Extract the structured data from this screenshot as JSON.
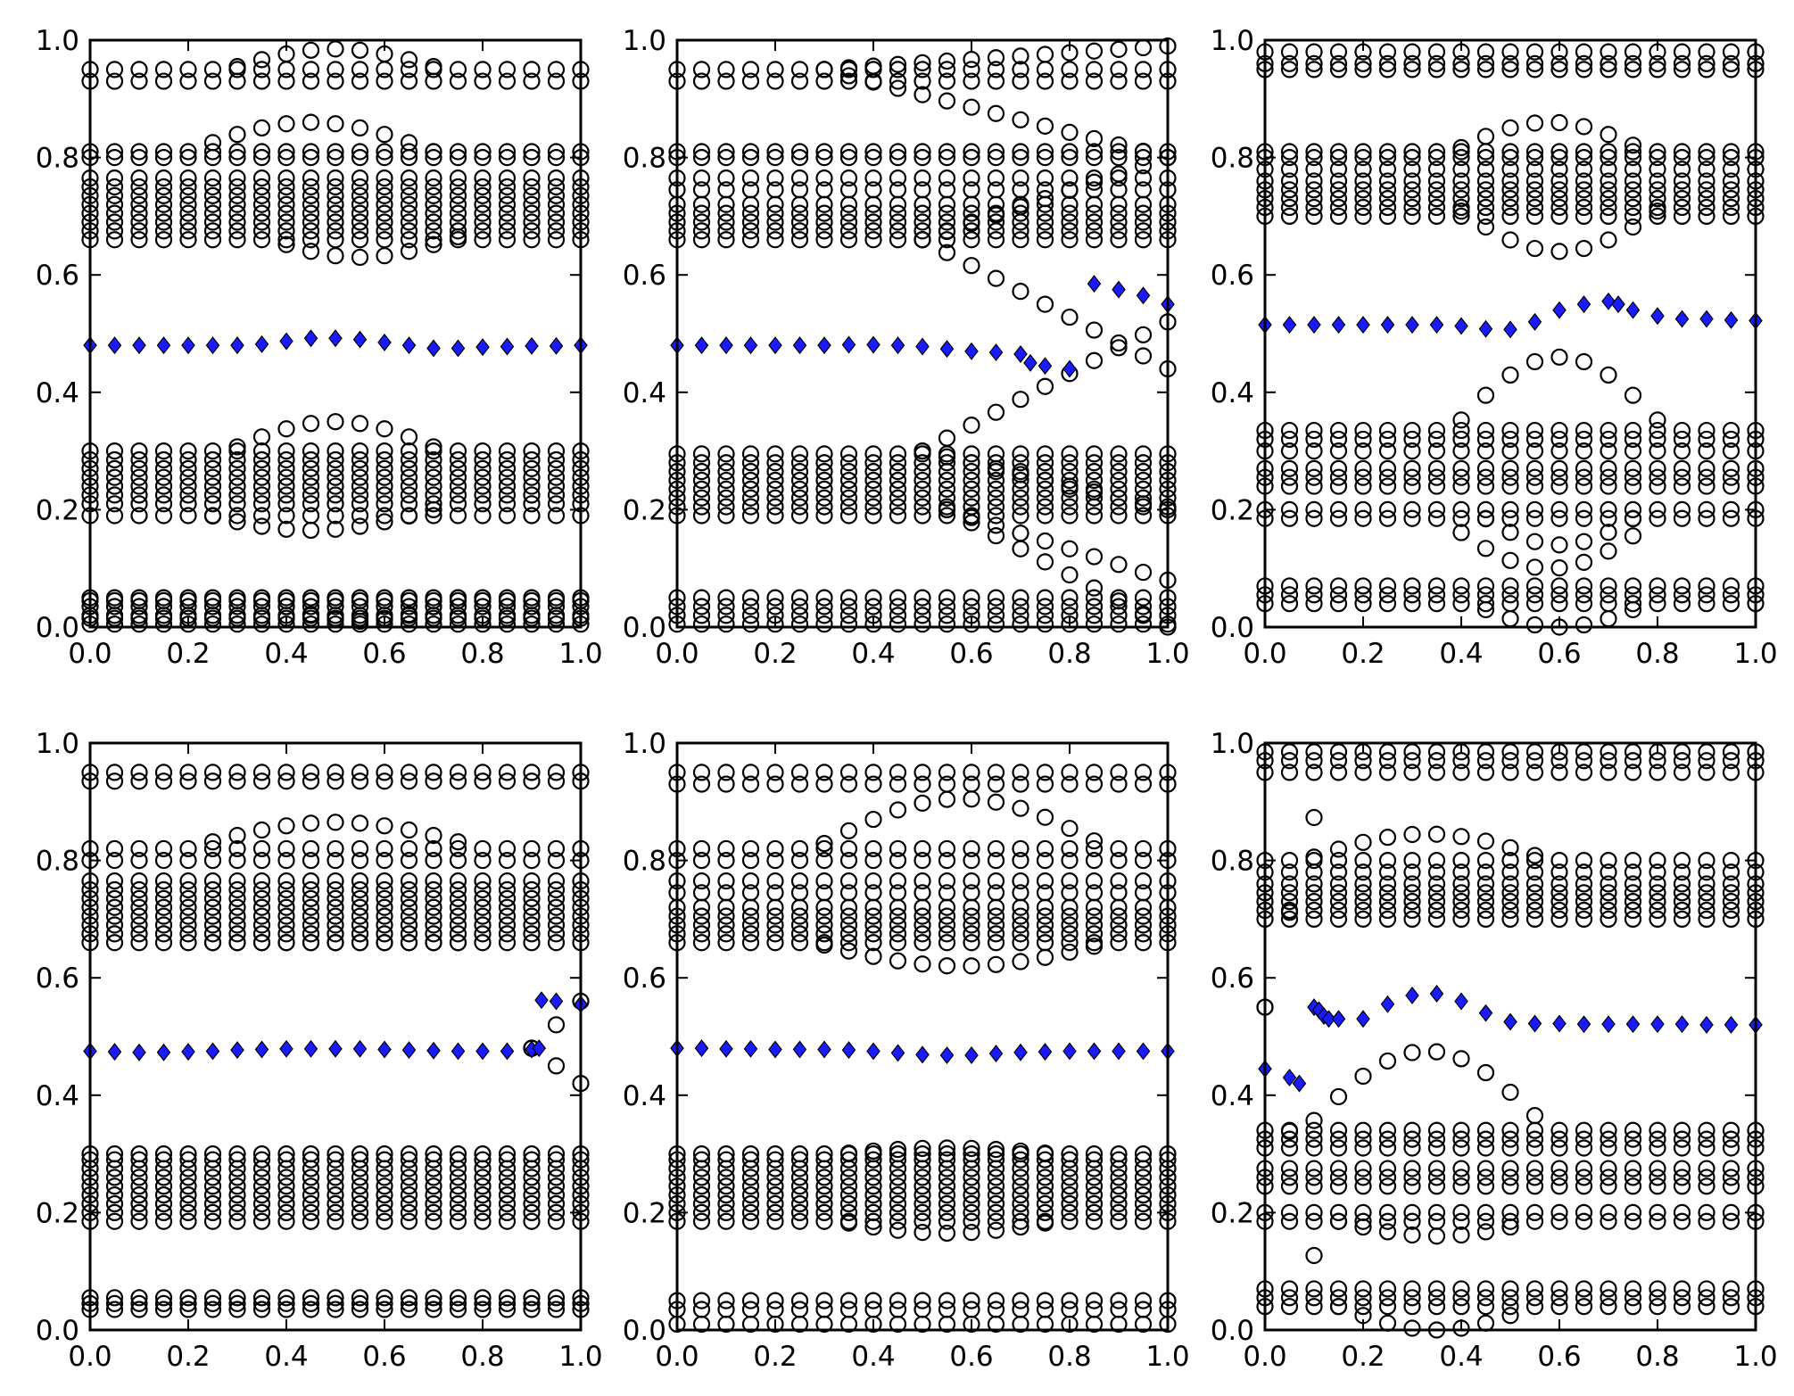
{
  "figure": {
    "title": "",
    "background": "#ffffff",
    "marker_colors": {
      "band": "#000000",
      "highlight_fill": "#1a1aff",
      "highlight_edge": "#000000"
    }
  },
  "chart_data": [
    {
      "type": "scatter",
      "title": "",
      "xlabel": "",
      "ylabel": "",
      "xlim": [
        0,
        1
      ],
      "ylim": [
        0,
        1
      ],
      "xticks": [
        "0.0",
        "0.2",
        "0.4",
        "0.6",
        "0.8",
        "1.0"
      ],
      "yticks": [
        "0.0",
        "0.2",
        "0.4",
        "0.6",
        "0.8",
        "1.0"
      ],
      "x_step": 0.05,
      "bands": [
        [
          0.005,
          0.015,
          0.02
        ],
        [
          0.035,
          0.045,
          0.05
        ],
        [
          0.19,
          0.21,
          0.225,
          0.24,
          0.255,
          0.27,
          0.285,
          0.3
        ],
        [
          0.66,
          0.675,
          0.69,
          0.705,
          0.72,
          0.735,
          0.75,
          0.765,
          0.8,
          0.81
        ],
        [
          0.93,
          0.95
        ]
      ],
      "arcs": [
        {
          "type": "bump",
          "center": 0.5,
          "width": 0.22,
          "upper_base": 0.95,
          "upper_peak": 0.985,
          "lower_base": 0.3,
          "lower_peak": 0.35
        },
        {
          "type": "bump",
          "center": 0.45,
          "width": 0.25,
          "upper_base": 0.81,
          "upper_peak": 0.86,
          "lower_base": 0.2,
          "lower_peak": 0.165
        },
        {
          "type": "bump",
          "center": 0.55,
          "width": 0.2,
          "upper_base": 0.665,
          "upper_peak": 0.63,
          "lower_base": 0.05,
          "lower_peak": 0.01
        }
      ],
      "series": [
        {
          "name": "highlight",
          "marker": "diamond",
          "x": [
            0,
            0.05,
            0.1,
            0.15,
            0.2,
            0.25,
            0.3,
            0.35,
            0.4,
            0.45,
            0.5,
            0.55,
            0.6,
            0.65,
            0.7,
            0.75,
            0.8,
            0.85,
            0.9,
            0.95,
            1.0
          ],
          "y": [
            0.48,
            0.48,
            0.48,
            0.48,
            0.48,
            0.48,
            0.48,
            0.482,
            0.487,
            0.492,
            0.492,
            0.49,
            0.485,
            0.48,
            0.475,
            0.475,
            0.477,
            0.478,
            0.479,
            0.479,
            0.48
          ]
        }
      ]
    },
    {
      "type": "scatter",
      "title": "",
      "xlabel": "",
      "ylabel": "",
      "xlim": [
        0,
        1
      ],
      "ylim": [
        0,
        1
      ],
      "xticks": [
        "0.0",
        "0.2",
        "0.4",
        "0.6",
        "0.8",
        "1.0"
      ],
      "yticks": [
        "0.0",
        "0.2",
        "0.4",
        "0.6",
        "0.8",
        "1.0"
      ],
      "x_step": 0.05,
      "bands": [
        [
          0.005,
          0.02
        ],
        [
          0.035,
          0.05
        ],
        [
          0.19,
          0.205,
          0.22,
          0.235,
          0.25,
          0.265,
          0.28,
          0.295
        ],
        [
          0.66,
          0.675,
          0.69,
          0.705,
          0.72,
          0.745,
          0.765,
          0.8,
          0.81
        ],
        [
          0.93,
          0.95
        ]
      ],
      "arcs": [
        {
          "type": "split",
          "start": 0.3,
          "end": 1.0,
          "from": 0.95,
          "upper_to": 0.99,
          "lower_to": 0.8
        },
        {
          "type": "split",
          "start": 0.5,
          "end": 1.0,
          "from": 0.66,
          "upper_to": 0.8,
          "lower_to": 0.44
        },
        {
          "type": "split",
          "start": 0.5,
          "end": 1.0,
          "from": 0.3,
          "upper_to": 0.52,
          "lower_to": 0.2
        },
        {
          "type": "split",
          "start": 0.55,
          "end": 1.0,
          "from": 0.2,
          "upper_to": 0.08,
          "lower_to": 0.0
        }
      ],
      "series": [
        {
          "name": "highlight",
          "marker": "diamond",
          "x": [
            0,
            0.05,
            0.1,
            0.15,
            0.2,
            0.25,
            0.3,
            0.35,
            0.4,
            0.45,
            0.5,
            0.55,
            0.6,
            0.65,
            0.7,
            0.72,
            0.75,
            0.8,
            0.85,
            0.9,
            0.95,
            1.0
          ],
          "y": [
            0.48,
            0.48,
            0.48,
            0.48,
            0.48,
            0.48,
            0.48,
            0.481,
            0.481,
            0.48,
            0.478,
            0.474,
            0.47,
            0.468,
            0.465,
            0.45,
            0.445,
            0.44,
            0.585,
            0.575,
            0.565,
            0.55
          ]
        }
      ]
    },
    {
      "type": "scatter",
      "title": "",
      "xlabel": "",
      "ylabel": "",
      "xlim": [
        0,
        1
      ],
      "ylim": [
        0,
        1
      ],
      "xticks": [
        "0.0",
        "0.2",
        "0.4",
        "0.6",
        "0.8",
        "1.0"
      ],
      "yticks": [
        "0.0",
        "0.2",
        "0.4",
        "0.6",
        "0.8",
        "1.0"
      ],
      "x_step": 0.05,
      "bands": [
        [
          0.04,
          0.055,
          0.07
        ],
        [
          0.185,
          0.2
        ],
        [
          0.24,
          0.255,
          0.27,
          0.3,
          0.32,
          0.335
        ],
        [
          0.7,
          0.715,
          0.73,
          0.745,
          0.76,
          0.78,
          0.8,
          0.81
        ],
        [
          0.95,
          0.96,
          0.98
        ]
      ],
      "arcs": [
        {
          "type": "bump",
          "center": 0.6,
          "width": 0.22,
          "upper_base": 0.72,
          "upper_peak": 0.64,
          "lower_base": 0.335,
          "lower_peak": 0.46
        },
        {
          "type": "bump",
          "center": 0.58,
          "width": 0.22,
          "upper_base": 0.8,
          "upper_peak": 0.86,
          "lower_base": 0.185,
          "lower_peak": 0.1
        },
        {
          "type": "bump",
          "center": 0.6,
          "width": 0.18,
          "upper_base": 0.04,
          "upper_peak": 0.0,
          "lower_base": 0.2,
          "lower_peak": 0.14
        }
      ],
      "series": [
        {
          "name": "highlight",
          "marker": "diamond",
          "x": [
            0,
            0.05,
            0.1,
            0.15,
            0.2,
            0.25,
            0.3,
            0.35,
            0.4,
            0.45,
            0.5,
            0.55,
            0.6,
            0.65,
            0.7,
            0.72,
            0.75,
            0.8,
            0.85,
            0.9,
            0.95,
            1.0
          ],
          "y": [
            0.515,
            0.515,
            0.515,
            0.515,
            0.515,
            0.515,
            0.515,
            0.515,
            0.513,
            0.508,
            0.507,
            0.52,
            0.54,
            0.55,
            0.555,
            0.55,
            0.54,
            0.53,
            0.525,
            0.525,
            0.523,
            0.522
          ]
        }
      ]
    },
    {
      "type": "scatter",
      "title": "",
      "xlabel": "",
      "ylabel": "",
      "xlim": [
        0,
        1
      ],
      "ylim": [
        0,
        1
      ],
      "xticks": [
        "0.0",
        "0.2",
        "0.4",
        "0.6",
        "0.8",
        "1.0"
      ],
      "yticks": [
        "0.0",
        "0.2",
        "0.4",
        "0.6",
        "0.8",
        "1.0"
      ],
      "x_step": 0.05,
      "bands": [
        [
          0.035,
          0.045,
          0.055
        ],
        [
          0.185,
          0.2,
          0.215,
          0.23,
          0.245,
          0.26,
          0.275,
          0.29,
          0.3
        ],
        [
          0.66,
          0.675,
          0.69,
          0.705,
          0.72,
          0.735,
          0.75,
          0.765,
          0.8,
          0.82
        ],
        [
          0.935,
          0.95
        ]
      ],
      "arcs": [
        {
          "type": "bump",
          "center": 0.5,
          "width": 0.3,
          "upper_base": 0.82,
          "upper_peak": 0.865,
          "lower_base": 0.66,
          "lower_peak": 0.66
        },
        {
          "type": "split",
          "start": 0.9,
          "end": 1.0,
          "from": 0.48,
          "upper_to": 0.56,
          "lower_to": 0.42
        }
      ],
      "series": [
        {
          "name": "highlight",
          "marker": "diamond",
          "x": [
            0,
            0.05,
            0.1,
            0.15,
            0.2,
            0.25,
            0.3,
            0.35,
            0.4,
            0.45,
            0.5,
            0.55,
            0.6,
            0.65,
            0.7,
            0.75,
            0.8,
            0.85,
            0.9,
            0.915,
            0.92,
            0.95,
            1.0
          ],
          "y": [
            0.475,
            0.474,
            0.473,
            0.473,
            0.474,
            0.475,
            0.477,
            0.478,
            0.479,
            0.479,
            0.479,
            0.479,
            0.478,
            0.477,
            0.476,
            0.475,
            0.475,
            0.475,
            0.478,
            0.48,
            0.562,
            0.56,
            0.555
          ]
        }
      ]
    },
    {
      "type": "scatter",
      "title": "",
      "xlabel": "",
      "ylabel": "",
      "xlim": [
        0,
        1
      ],
      "ylim": [
        0,
        1
      ],
      "xticks": [
        "0.0",
        "0.2",
        "0.4",
        "0.6",
        "0.8",
        "1.0"
      ],
      "yticks": [
        "0.0",
        "0.2",
        "0.4",
        "0.6",
        "0.8",
        "1.0"
      ],
      "x_step": 0.05,
      "bands": [
        [
          0.01,
          0.035,
          0.05
        ],
        [
          0.185,
          0.2,
          0.215,
          0.23,
          0.245,
          0.26,
          0.275,
          0.29,
          0.3
        ],
        [
          0.66,
          0.675,
          0.69,
          0.705,
          0.72,
          0.745,
          0.765,
          0.8,
          0.82
        ],
        [
          0.93,
          0.95
        ]
      ],
      "arcs": [
        {
          "type": "bump",
          "center": 0.58,
          "width": 0.3,
          "upper_base": 0.82,
          "upper_peak": 0.905,
          "lower_base": 0.66,
          "lower_peak": 0.62
        },
        {
          "type": "bump",
          "center": 0.55,
          "width": 0.22,
          "upper_base": 0.3,
          "upper_peak": 0.31,
          "lower_base": 0.185,
          "lower_peak": 0.165
        }
      ],
      "series": [
        {
          "name": "highlight",
          "marker": "diamond",
          "x": [
            0,
            0.05,
            0.1,
            0.15,
            0.2,
            0.25,
            0.3,
            0.35,
            0.4,
            0.45,
            0.5,
            0.55,
            0.6,
            0.65,
            0.7,
            0.75,
            0.8,
            0.85,
            0.9,
            0.95,
            1.0
          ],
          "y": [
            0.48,
            0.48,
            0.479,
            0.479,
            0.478,
            0.478,
            0.478,
            0.477,
            0.475,
            0.472,
            0.469,
            0.468,
            0.468,
            0.471,
            0.473,
            0.474,
            0.475,
            0.475,
            0.475,
            0.475,
            0.475
          ]
        }
      ]
    },
    {
      "type": "scatter",
      "title": "",
      "xlabel": "",
      "ylabel": "",
      "xlim": [
        0,
        1
      ],
      "ylim": [
        0,
        1
      ],
      "xticks": [
        "0.0",
        "0.2",
        "0.4",
        "0.6",
        "0.8",
        "1.0"
      ],
      "yticks": [
        "0.0",
        "0.2",
        "0.4",
        "0.6",
        "0.8",
        "1.0"
      ],
      "x_step": 0.05,
      "bands": [
        [
          0.04,
          0.055,
          0.07
        ],
        [
          0.185,
          0.2
        ],
        [
          0.245,
          0.26,
          0.275,
          0.31,
          0.325,
          0.34
        ],
        [
          0.7,
          0.715,
          0.73,
          0.745,
          0.76,
          0.78,
          0.8
        ],
        [
          0.95,
          0.97,
          0.985
        ]
      ],
      "arcs": [
        {
          "type": "bump",
          "center": 0.33,
          "width": 0.25,
          "upper_base": 0.8,
          "upper_peak": 0.845,
          "lower_base": 0.34,
          "lower_peak": 0.475
        },
        {
          "type": "bump",
          "center": 0.35,
          "width": 0.2,
          "upper_base": 0.185,
          "upper_peak": 0.16,
          "lower_base": 0.04,
          "lower_peak": 0.0
        },
        {
          "type": "split",
          "start": 0.0,
          "end": 0.13,
          "from": 0.55,
          "upper_to": 0.97,
          "lower_to": 0.0
        }
      ],
      "series": [
        {
          "name": "highlight",
          "marker": "diamond",
          "x": [
            0,
            0.05,
            0.07,
            0.1,
            0.11,
            0.12,
            0.13,
            0.15,
            0.2,
            0.25,
            0.3,
            0.35,
            0.4,
            0.45,
            0.5,
            0.55,
            0.6,
            0.65,
            0.7,
            0.75,
            0.8,
            0.85,
            0.9,
            0.95,
            1.0
          ],
          "y": [
            0.445,
            0.43,
            0.42,
            0.55,
            0.545,
            0.535,
            0.53,
            0.53,
            0.53,
            0.555,
            0.57,
            0.573,
            0.56,
            0.54,
            0.525,
            0.522,
            0.522,
            0.521,
            0.521,
            0.521,
            0.521,
            0.521,
            0.52,
            0.52,
            0.52
          ]
        }
      ]
    }
  ]
}
